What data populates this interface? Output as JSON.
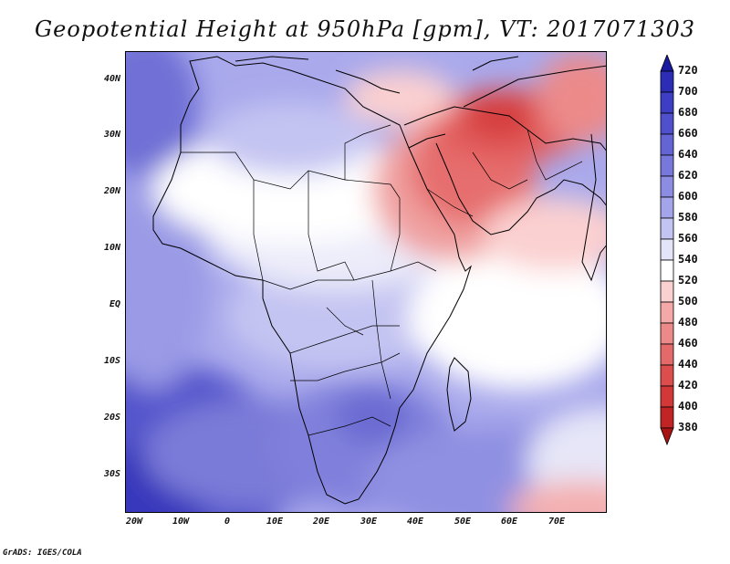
{
  "title": "Geopotential Height at 950hPa [gpm], VT: 2017071303",
  "credit": "GrADS: IGES/COLA",
  "y_ticks": [
    "40N",
    "30N",
    "20N",
    "10N",
    "EQ",
    "10S",
    "20S",
    "30S"
  ],
  "x_ticks": [
    "20W",
    "10W",
    "0",
    "10E",
    "20E",
    "30E",
    "40E",
    "50E",
    "60E",
    "70E"
  ],
  "colorbar": {
    "labels": [
      "720",
      "700",
      "680",
      "660",
      "640",
      "620",
      "600",
      "580",
      "560",
      "540",
      "520",
      "500",
      "480",
      "460",
      "440",
      "420",
      "400",
      "380"
    ],
    "colors": [
      "#1a1aa0",
      "#2c2cb4",
      "#3e3ec4",
      "#5050cc",
      "#6464d4",
      "#7878dc",
      "#8c8ce2",
      "#a4a4ea",
      "#c4c4f2",
      "#e4e4f8",
      "#ffffff",
      "#fbd0d0",
      "#f4a8a8",
      "#ec8a8a",
      "#e46a6a",
      "#dc4e4e",
      "#d23838",
      "#c02424",
      "#a81414"
    ]
  },
  "map": {
    "lon_range": [
      -22,
      80
    ],
    "lat_range": [
      -37,
      45
    ],
    "fields": "geopotential height shaded 380-720 gpm"
  }
}
